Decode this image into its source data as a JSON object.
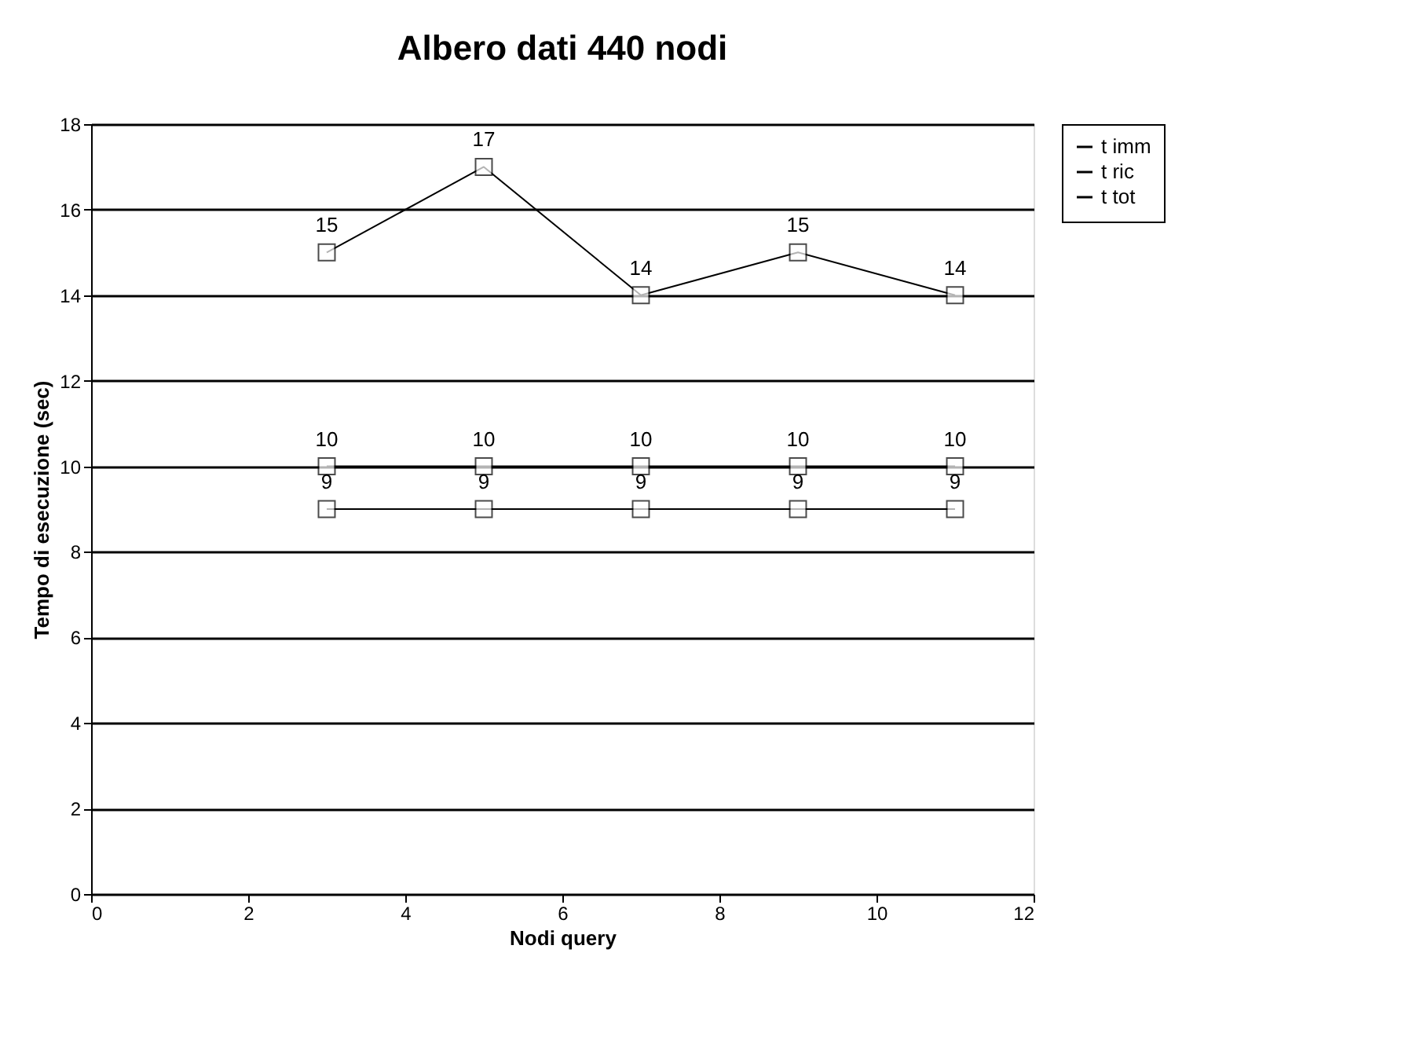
{
  "chart_data": {
    "type": "line",
    "title": "Albero dati 440 nodi",
    "xlabel": "Nodi query",
    "ylabel": "Tempo di esecuzione (sec)",
    "x": [
      3,
      5,
      7,
      9,
      11
    ],
    "series": [
      {
        "name": "t imm",
        "color": "#000000",
        "values": [
          9,
          9,
          9,
          9,
          9
        ]
      },
      {
        "name": "t ric",
        "color": "#000000",
        "values": [
          10,
          10,
          10,
          10,
          10
        ]
      },
      {
        "name": "t tot",
        "color": "#000000",
        "values": [
          15,
          17,
          14,
          15,
          14
        ]
      }
    ],
    "xlim": [
      0,
      12
    ],
    "xticks": [
      0,
      2,
      4,
      6,
      8,
      10,
      12
    ],
    "ylim": [
      0,
      18
    ],
    "yticks": [
      0,
      2,
      4,
      6,
      8,
      10,
      12,
      14,
      16,
      18
    ],
    "grid": "y",
    "legend": "right",
    "marker": "square",
    "line_style": "solid",
    "data_labels": true
  }
}
